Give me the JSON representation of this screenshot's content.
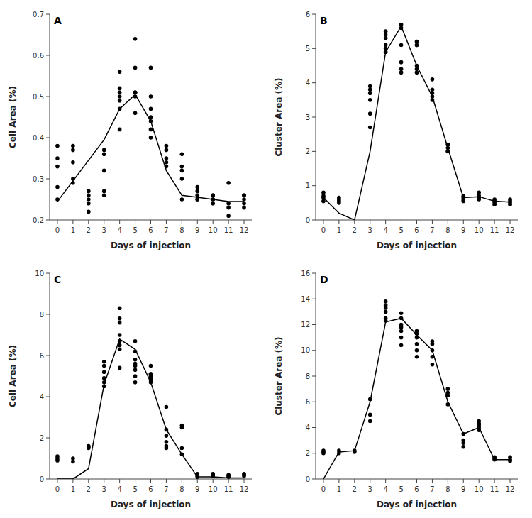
{
  "chart_data": [
    {
      "type": "scatter",
      "annotations": [
        "A"
      ],
      "xlabel": "Days of injection",
      "ylabel": "Cell Area (%)",
      "xlim": [
        -0.5,
        12.5
      ],
      "xticks": [
        0,
        1,
        2,
        3,
        4,
        5,
        6,
        7,
        8,
        9,
        10,
        11,
        12
      ],
      "ylim": [
        0.2,
        0.7
      ],
      "yticks": [
        0.2,
        0.3,
        0.4,
        0.5,
        0.6,
        0.7
      ],
      "grid": false,
      "series": [
        {
          "type": "scatter",
          "color": "#000000",
          "x": [
            0,
            0,
            0,
            0,
            0,
            1,
            1,
            1,
            1,
            1,
            2,
            2,
            2,
            2,
            2,
            3,
            3,
            3,
            3,
            3,
            4,
            4,
            4,
            4,
            4,
            4,
            4,
            5,
            5,
            5,
            5,
            5,
            5,
            5,
            6,
            6,
            6,
            6,
            6,
            6,
            6,
            7,
            7,
            7,
            7,
            7,
            8,
            8,
            8,
            8,
            8,
            9,
            9,
            9,
            9,
            9,
            10,
            10,
            10,
            10,
            10,
            11,
            11,
            11,
            11,
            12,
            12,
            12,
            12,
            12
          ],
          "values": [
            0.25,
            0.28,
            0.33,
            0.35,
            0.38,
            0.29,
            0.3,
            0.34,
            0.37,
            0.38,
            0.22,
            0.24,
            0.25,
            0.26,
            0.27,
            0.26,
            0.27,
            0.32,
            0.36,
            0.37,
            0.42,
            0.47,
            0.49,
            0.5,
            0.51,
            0.52,
            0.56,
            0.46,
            0.5,
            0.51,
            0.51,
            0.51,
            0.57,
            0.64,
            0.4,
            0.42,
            0.44,
            0.45,
            0.47,
            0.5,
            0.57,
            0.33,
            0.34,
            0.35,
            0.37,
            0.38,
            0.25,
            0.3,
            0.32,
            0.33,
            0.36,
            0.25,
            0.25,
            0.26,
            0.27,
            0.28,
            0.24,
            0.25,
            0.25,
            0.26,
            0.26,
            0.21,
            0.23,
            0.24,
            0.29,
            0.23,
            0.24,
            0.25,
            0.26,
            0.26
          ]
        },
        {
          "type": "line",
          "color": "#000000",
          "x": [
            0,
            1,
            2,
            3,
            4,
            5,
            6,
            7,
            8,
            9,
            10,
            11,
            12
          ],
          "values": [
            0.245,
            0.295,
            0.345,
            0.395,
            0.47,
            0.505,
            0.44,
            0.32,
            0.26,
            0.255,
            0.25,
            0.245,
            0.245
          ]
        }
      ]
    },
    {
      "type": "scatter",
      "annotations": [
        "B"
      ],
      "xlabel": "Days of injection",
      "ylabel": "Cluster Area (%)",
      "xlim": [
        -0.5,
        12.5
      ],
      "xticks": [
        0,
        1,
        2,
        3,
        4,
        5,
        6,
        7,
        8,
        9,
        10,
        11,
        12
      ],
      "ylim": [
        0,
        6
      ],
      "yticks": [
        0,
        1,
        2,
        3,
        4,
        5,
        6
      ],
      "grid": false,
      "series": [
        {
          "type": "scatter",
          "color": "#000000",
          "x": [
            0,
            0,
            0,
            0,
            1,
            1,
            1,
            1,
            3,
            3,
            3,
            3,
            3,
            3,
            4,
            4,
            4,
            4,
            4,
            4,
            5,
            5,
            5,
            5,
            5,
            5,
            6,
            6,
            6,
            6,
            6,
            6,
            7,
            7,
            7,
            7,
            7,
            8,
            8,
            8,
            8,
            8,
            9,
            9,
            9,
            9,
            10,
            10,
            10,
            10,
            11,
            11,
            11,
            11,
            12,
            12,
            12,
            12
          ],
          "values": [
            0.55,
            0.65,
            0.7,
            0.8,
            0.5,
            0.55,
            0.6,
            0.65,
            2.7,
            3.1,
            3.5,
            3.7,
            3.8,
            3.9,
            4.9,
            5.0,
            5.1,
            5.3,
            5.4,
            5.5,
            4.3,
            4.4,
            4.6,
            5.1,
            5.6,
            5.7,
            4.3,
            4.4,
            4.5,
            5.1,
            5.1,
            5.2,
            3.5,
            3.6,
            3.7,
            3.8,
            4.1,
            2.0,
            2.0,
            2.1,
            2.2,
            2.2,
            0.55,
            0.6,
            0.65,
            0.7,
            0.6,
            0.65,
            0.7,
            0.8,
            0.45,
            0.5,
            0.55,
            0.6,
            0.45,
            0.5,
            0.55,
            0.6
          ]
        },
        {
          "type": "line",
          "color": "#000000",
          "x": [
            0,
            1,
            2,
            3,
            4,
            5,
            6,
            7,
            8,
            9,
            10,
            11,
            12
          ],
          "values": [
            0.65,
            0.2,
            0.0,
            2.0,
            4.9,
            5.65,
            4.5,
            3.6,
            2.1,
            0.65,
            0.68,
            0.55,
            0.52
          ]
        }
      ]
    },
    {
      "type": "scatter",
      "annotations": [
        "C"
      ],
      "xlabel": "Days of injection",
      "ylabel": "Cell Area (%)",
      "xlim": [
        -0.5,
        12.5
      ],
      "xticks": [
        0,
        1,
        2,
        3,
        4,
        5,
        6,
        7,
        8,
        9,
        10,
        11,
        12
      ],
      "ylim": [
        0,
        10
      ],
      "yticks": [
        0,
        2,
        4,
        6,
        8,
        10
      ],
      "grid": false,
      "series": [
        {
          "type": "scatter",
          "color": "#000000",
          "x": [
            0,
            0,
            0,
            1,
            1,
            2,
            2,
            2,
            3,
            3,
            3,
            3,
            3,
            3,
            4,
            4,
            4,
            4,
            4,
            4,
            4,
            4,
            5,
            5,
            5,
            5,
            5,
            5,
            5,
            5,
            6,
            6,
            6,
            6,
            6,
            6,
            6,
            7,
            7,
            7,
            7,
            7,
            7,
            8,
            8,
            8,
            8,
            9,
            9,
            9,
            9,
            10,
            10,
            10,
            11,
            11,
            11,
            12,
            12,
            12
          ],
          "values": [
            0.9,
            1.0,
            1.1,
            0.85,
            1.0,
            1.5,
            1.55,
            1.6,
            4.5,
            4.7,
            4.9,
            5.2,
            5.5,
            5.7,
            5.4,
            6.3,
            6.5,
            6.7,
            7.0,
            7.6,
            7.8,
            8.3,
            4.7,
            5.0,
            5.3,
            5.5,
            5.6,
            5.8,
            6.2,
            6.7,
            4.7,
            4.8,
            4.9,
            5.0,
            5.1,
            5.1,
            5.5,
            1.5,
            1.6,
            1.8,
            2.1,
            2.4,
            3.5,
            1.2,
            1.5,
            2.5,
            2.6,
            0.1,
            0.15,
            0.2,
            0.25,
            0.15,
            0.2,
            0.25,
            0.1,
            0.15,
            0.2,
            0.15,
            0.2,
            0.25
          ]
        },
        {
          "type": "line",
          "color": "#000000",
          "x": [
            0,
            1,
            2,
            3,
            4,
            5,
            6,
            7,
            8,
            9,
            10,
            11,
            12
          ],
          "values": [
            0.0,
            0.0,
            0.5,
            4.6,
            6.8,
            6.3,
            4.7,
            2.4,
            1.2,
            0.1,
            0.1,
            0.05,
            0.05
          ]
        }
      ]
    },
    {
      "type": "scatter",
      "annotations": [
        "D"
      ],
      "xlabel": "Days of injection",
      "ylabel": "Cluster Area (%)",
      "xlim": [
        -0.5,
        12.5
      ],
      "xticks": [
        0,
        1,
        2,
        3,
        4,
        5,
        6,
        7,
        8,
        9,
        10,
        11,
        12
      ],
      "ylim": [
        0,
        16
      ],
      "yticks": [
        0,
        2,
        4,
        6,
        8,
        10,
        12,
        14,
        16
      ],
      "grid": false,
      "series": [
        {
          "type": "scatter",
          "color": "#000000",
          "x": [
            0,
            0,
            0,
            1,
            1,
            2,
            2,
            3,
            3,
            3,
            4,
            4,
            4,
            4,
            4,
            4,
            5,
            5,
            5,
            5,
            5,
            5,
            5,
            6,
            6,
            6,
            6,
            6,
            6,
            7,
            7,
            7,
            7,
            7,
            8,
            8,
            8,
            8,
            9,
            9,
            9,
            9,
            10,
            10,
            10,
            10,
            10,
            11,
            11,
            11,
            12,
            12,
            12
          ],
          "values": [
            2.0,
            2.1,
            2.2,
            2.0,
            2.2,
            2.1,
            2.2,
            4.5,
            5.0,
            6.2,
            12.3,
            12.5,
            13.0,
            13.3,
            13.5,
            13.8,
            10.4,
            11.0,
            11.5,
            11.8,
            12.0,
            12.5,
            12.9,
            9.5,
            10.0,
            10.5,
            11.0,
            11.3,
            11.5,
            8.9,
            9.5,
            10.0,
            10.5,
            10.7,
            5.8,
            6.5,
            6.7,
            7.0,
            2.5,
            2.8,
            3.0,
            3.5,
            3.8,
            4.0,
            4.2,
            4.3,
            4.5,
            1.5,
            1.6,
            1.7,
            1.4,
            1.5,
            1.7
          ]
        },
        {
          "type": "line",
          "color": "#000000",
          "x": [
            0,
            1,
            2,
            3,
            4,
            5,
            6,
            7,
            8,
            9,
            10,
            11,
            12
          ],
          "values": [
            0.0,
            2.1,
            2.2,
            6.0,
            12.2,
            12.5,
            11.2,
            10.0,
            6.0,
            3.5,
            4.0,
            1.5,
            1.5
          ]
        }
      ]
    }
  ]
}
